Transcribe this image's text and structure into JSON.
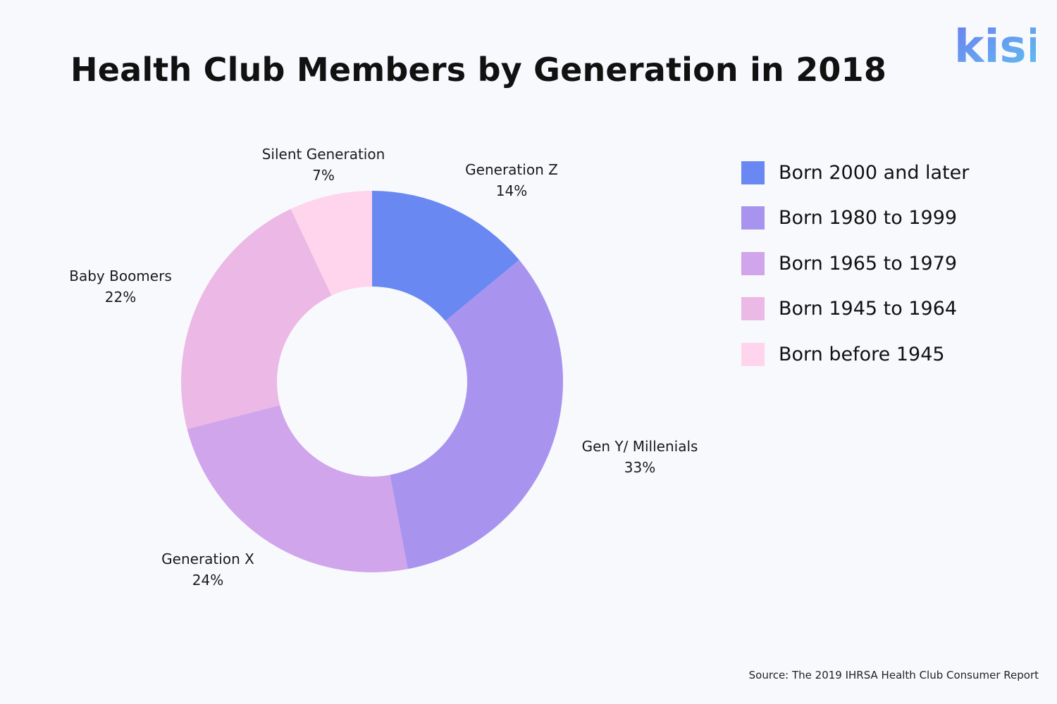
{
  "title": "Health Club Members by Generation in 2018",
  "brand": {
    "logo_text": "kisi",
    "logo_gradient": [
      "#6b7ff0",
      "#5fc2ef"
    ]
  },
  "source": "Source: The 2019 IHRSA Health Club Consumer Report",
  "chart_data": {
    "type": "pie",
    "donut": true,
    "title": "Health Club Members by Generation in 2018",
    "unit": "%",
    "slices": [
      {
        "name": "Generation Z",
        "value": 14,
        "label": "14%",
        "legend": "Born 2000 and later",
        "color": "#6a88f1"
      },
      {
        "name": "Gen Y/ Millenials",
        "value": 33,
        "label": "33%",
        "legend": "Born 1980 to 1999",
        "color": "#a894ee"
      },
      {
        "name": "Generation X",
        "value": 24,
        "label": "24%",
        "legend": "Born 1965 to 1979",
        "color": "#d0a5eb"
      },
      {
        "name": "Baby Boomers",
        "value": 22,
        "label": "22%",
        "legend": "Born 1945 to 1964",
        "color": "#ecb8e6"
      },
      {
        "name": "Silent Generation",
        "value": 7,
        "label": "7%",
        "legend": "Born before 1945",
        "color": "#fed5ec"
      }
    ],
    "legend_position": "right"
  }
}
